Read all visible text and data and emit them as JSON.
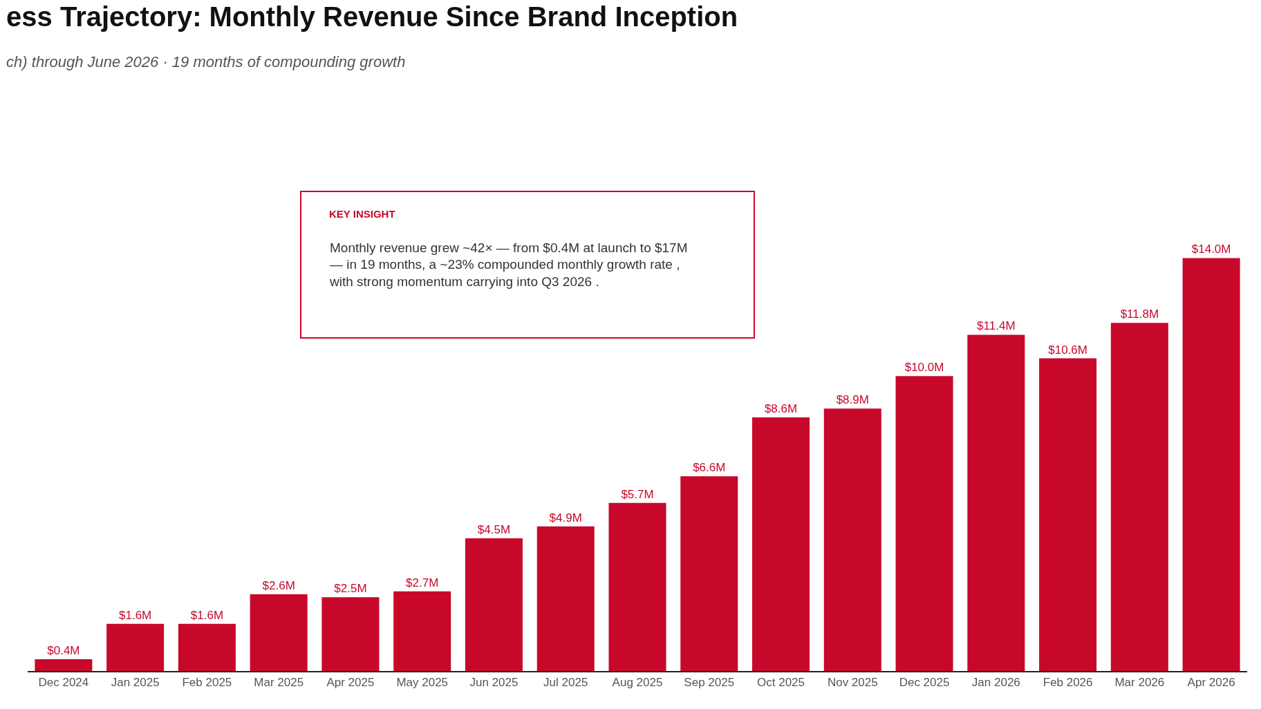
{
  "chart_data": {
    "type": "bar",
    "title": "ess Trajectory: Monthly Revenue Since Brand Inception",
    "subtitle": "ch) through June 2026 · 19 months of compounding growth",
    "categories": [
      "Dec 2024",
      "Jan 2025",
      "Feb 2025",
      "Mar 2025",
      "Apr 2025",
      "May 2025",
      "Jun 2025",
      "Jul 2025",
      "Aug 2025",
      "Sep 2025",
      "Oct 2025",
      "Nov 2025",
      "Dec 2025",
      "Jan 2026",
      "Feb 2026",
      "Mar 2026",
      "Apr 2026"
    ],
    "values": [
      0.4,
      1.6,
      1.6,
      2.6,
      2.5,
      2.7,
      4.5,
      4.9,
      5.7,
      6.6,
      8.6,
      8.9,
      10.0,
      11.4,
      10.6,
      11.8,
      14.0
    ],
    "value_labels": [
      "$0.4M",
      "$1.6M",
      "$1.6M",
      "$2.6M",
      "$2.5M",
      "$2.7M",
      "$4.5M",
      "$4.9M",
      "$5.7M",
      "$6.6M",
      "$8.6M",
      "$8.9M",
      "$10.0M",
      "$11.4M",
      "$10.6M",
      "$11.8M",
      "$14.0M"
    ],
    "color": "#c8082a",
    "tick_labels": "x",
    "annotations": [
      "KEY INSIGHT",
      "Monthly revenue grew ~42× — from $0.4M at launch to $17M — in 19 months, a ~23% compounded monthly growth rate , with strong momentum carrying into Q3 2026 ."
    ]
  }
}
